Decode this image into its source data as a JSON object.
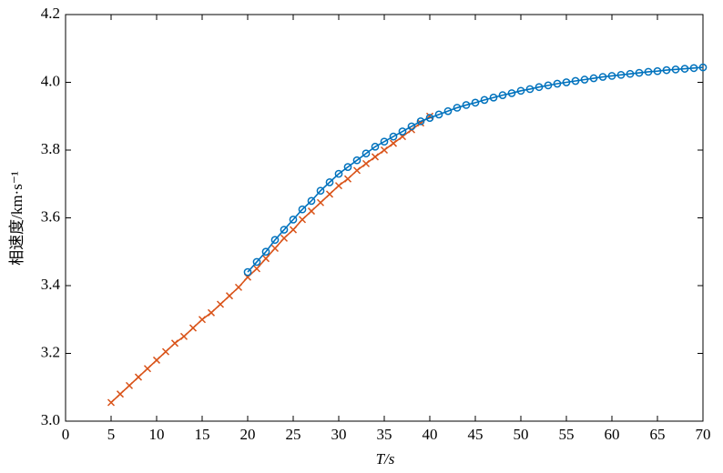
{
  "chart_data": {
    "type": "line",
    "xlabel": "T/s",
    "ylabel": "相速度/km·s⁻¹",
    "xlim": [
      0,
      70
    ],
    "xticks": [
      0,
      5,
      10,
      15,
      20,
      25,
      30,
      35,
      40,
      45,
      50,
      55,
      60,
      65,
      70
    ],
    "ylim": [
      3.0,
      4.2
    ],
    "yticks": [
      {
        "value": 3.0,
        "label": "3.0"
      },
      3.2,
      3.4,
      3.6,
      3.8,
      {
        "value": 4.0,
        "label": "4.0"
      },
      4.2
    ],
    "grid": false,
    "series": [
      {
        "color": "#d95319",
        "marker": "x",
        "x": [
          5,
          6,
          7,
          8,
          9,
          10,
          11,
          12,
          13,
          14,
          15,
          16,
          17,
          18,
          19,
          20,
          21,
          22,
          23,
          24,
          25,
          26,
          27,
          28,
          29,
          30,
          31,
          32,
          33,
          34,
          35,
          36,
          37,
          38,
          39,
          40
        ],
        "values": [
          3.055,
          3.08,
          3.105,
          3.13,
          3.155,
          3.18,
          3.205,
          3.23,
          3.25,
          3.275,
          3.3,
          3.32,
          3.345,
          3.37,
          3.395,
          3.425,
          3.45,
          3.48,
          3.51,
          3.54,
          3.565,
          3.595,
          3.62,
          3.645,
          3.67,
          3.695,
          3.715,
          3.74,
          3.76,
          3.78,
          3.8,
          3.82,
          3.84,
          3.86,
          3.88,
          3.9
        ]
      },
      {
        "color": "#0072bd",
        "marker": "o",
        "x": [
          20,
          21,
          22,
          23,
          24,
          25,
          26,
          27,
          28,
          29,
          30,
          31,
          32,
          33,
          34,
          35,
          36,
          37,
          38,
          39,
          40,
          41,
          42,
          43,
          44,
          45,
          46,
          47,
          48,
          49,
          50,
          51,
          52,
          53,
          54,
          55,
          56,
          57,
          58,
          59,
          60,
          61,
          62,
          63,
          64,
          65,
          66,
          67,
          68,
          69,
          70
        ],
        "values": [
          3.44,
          3.47,
          3.5,
          3.535,
          3.565,
          3.595,
          3.625,
          3.65,
          3.68,
          3.705,
          3.73,
          3.75,
          3.77,
          3.79,
          3.81,
          3.825,
          3.84,
          3.855,
          3.87,
          3.885,
          3.895,
          3.905,
          3.915,
          3.925,
          3.933,
          3.94,
          3.948,
          3.955,
          3.962,
          3.968,
          3.975,
          3.98,
          3.986,
          3.991,
          3.996,
          4.0,
          4.004,
          4.008,
          4.012,
          4.016,
          4.019,
          4.022,
          4.025,
          4.028,
          4.031,
          4.033,
          4.036,
          4.038,
          4.04,
          4.042,
          4.044
        ]
      }
    ]
  }
}
